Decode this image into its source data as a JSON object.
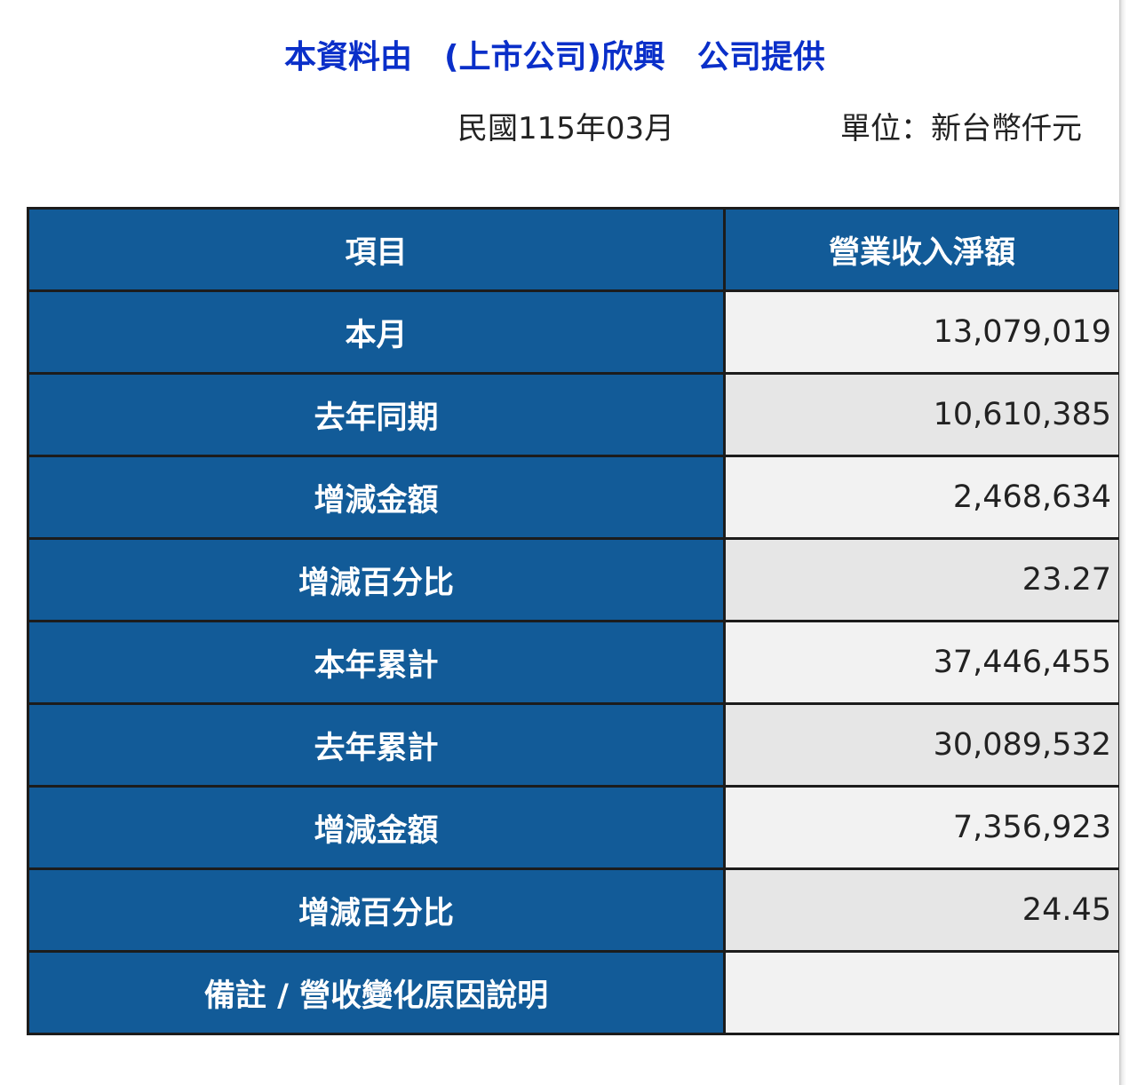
{
  "header": {
    "title": "本資料由　(上市公司)欣興　公司提供",
    "date": "民國115年03月",
    "unit": "單位：新台幣仟元"
  },
  "table": {
    "columns": [
      "項目",
      "營業收入淨額"
    ],
    "rows": [
      {
        "label": "本月",
        "value": "13,079,019"
      },
      {
        "label": "去年同期",
        "value": "10,610,385"
      },
      {
        "label": "增減金額",
        "value": "2,468,634"
      },
      {
        "label": "增減百分比",
        "value": "23.27"
      },
      {
        "label": "本年累計",
        "value": "37,446,455"
      },
      {
        "label": "去年累計",
        "value": "30,089,532"
      },
      {
        "label": "增減金額",
        "value": "7,356,923"
      },
      {
        "label": "增減百分比",
        "value": "24.45"
      },
      {
        "label": "備註 / 營收變化原因說明",
        "value": ""
      }
    ]
  }
}
